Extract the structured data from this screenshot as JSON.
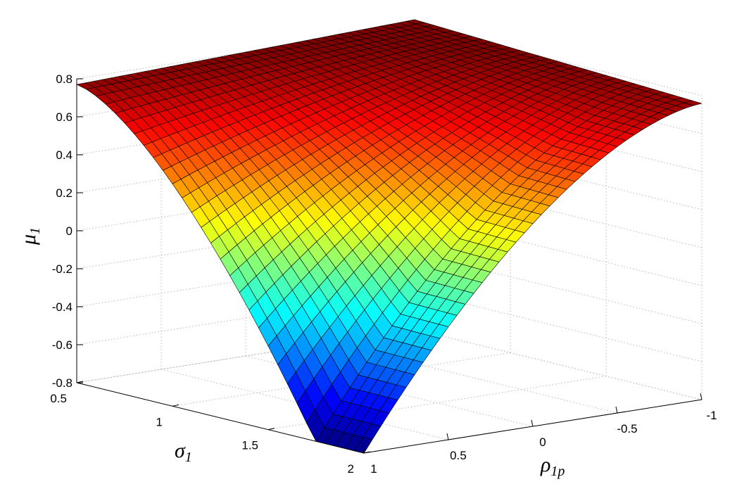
{
  "chart_data": {
    "type": "surface",
    "title": "",
    "xlabel": "ρ",
    "xlabel_sub": "1p",
    "ylabel": "σ",
    "ylabel_sub": "1",
    "zlabel": "μ",
    "zlabel_sub": "1",
    "xlim": [
      -1,
      1
    ],
    "ylim": [
      0.5,
      2
    ],
    "zlim": [
      -0.8,
      0.8
    ],
    "x_ticks": [
      "-1",
      "-0.5",
      "0",
      "0.5",
      "1"
    ],
    "y_ticks": [
      "0.5",
      "1",
      "1.5",
      "2"
    ],
    "z_ticks": [
      "-0.8",
      "-0.6",
      "-0.4",
      "-0.2",
      "0",
      "0.2",
      "0.4",
      "0.6",
      "0.8"
    ],
    "colormap": "jet",
    "grid": true,
    "mesh": {
      "rho_count": 41,
      "sigma_count": 31
    },
    "corner_values": [
      {
        "rho": 1,
        "sigma": 0.5,
        "mu": 0.77
      },
      {
        "rho": 1,
        "sigma": 2,
        "mu": -0.8
      },
      {
        "rho": -1,
        "sigma": 0.5,
        "mu": 0.8
      },
      {
        "rho": -1,
        "sigma": 2,
        "mu": 0.73
      }
    ]
  }
}
